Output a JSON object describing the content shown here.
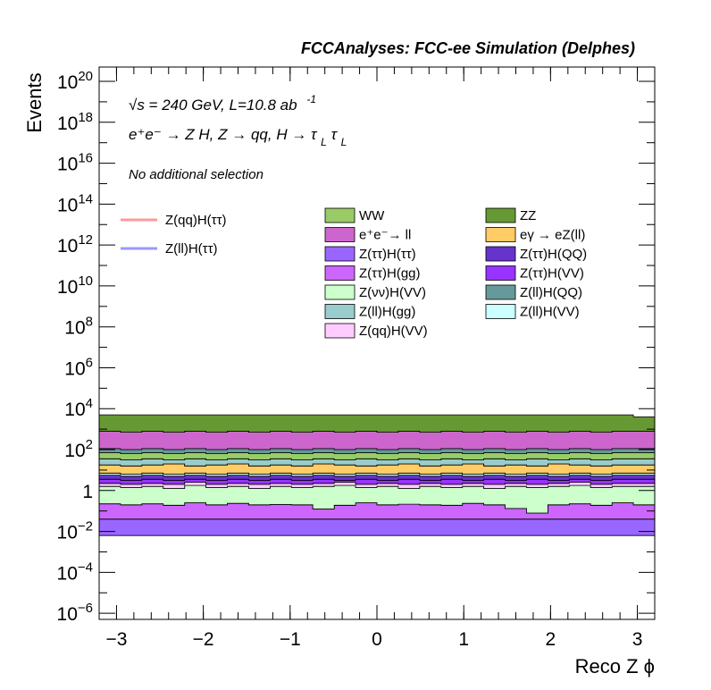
{
  "chart_data": {
    "type": "area",
    "title": "FCCAnalyses: FCC-ee Simulation (Delphes)",
    "xlabel": "Reco Z ϕ",
    "ylabel": "Events",
    "xlim": [
      -3.2,
      3.2
    ],
    "ylim_log10": [
      -6.3,
      20.7
    ],
    "log_y": true,
    "x_ticks": [
      {
        "value": -3,
        "label": "−3"
      },
      {
        "value": -2,
        "label": "−2"
      },
      {
        "value": -1,
        "label": "−1"
      },
      {
        "value": 0,
        "label": "0"
      },
      {
        "value": 1,
        "label": "1"
      },
      {
        "value": 2,
        "label": "2"
      },
      {
        "value": 3,
        "label": "3"
      }
    ],
    "y_ticks": [
      {
        "exp": 20,
        "base": "10",
        "sup": "20"
      },
      {
        "exp": 18,
        "base": "10",
        "sup": "18"
      },
      {
        "exp": 16,
        "base": "10",
        "sup": "16"
      },
      {
        "exp": 14,
        "base": "10",
        "sup": "14"
      },
      {
        "exp": 12,
        "base": "10",
        "sup": "12"
      },
      {
        "exp": 10,
        "base": "10",
        "sup": "10"
      },
      {
        "exp": 8,
        "base": "10",
        "sup": "8"
      },
      {
        "exp": 6,
        "base": "10",
        "sup": "6"
      },
      {
        "exp": 4,
        "base": "10",
        "sup": "4"
      },
      {
        "exp": 2,
        "base": "10",
        "sup": "2"
      },
      {
        "exp": 0,
        "base": "1",
        "sup": ""
      },
      {
        "exp": -2,
        "base": "10",
        "sup": "−2"
      },
      {
        "exp": -4,
        "base": "10",
        "sup": "−4"
      },
      {
        "exp": -6,
        "base": "10",
        "sup": "−6"
      }
    ],
    "annotations": {
      "energy": "√s = 240 GeV, L=10.8 ab",
      "energy_sup": "-1",
      "process": "e⁺e⁻ → Z H, Z → qq, H → τ",
      "process_sub": "L",
      "process_tail": "τ",
      "selection": "No additional selection"
    },
    "bins": 26,
    "stacked_series": [
      {
        "name": "Z(ττ)H(ττ)",
        "color": "#9966ff",
        "base_log10": -2.2,
        "cumulative_log10": [
          -1.4,
          -1.4,
          -1.4,
          -1.4,
          -1.4,
          -1.4,
          -1.4,
          -1.4,
          -1.4,
          -1.4,
          -1.4,
          -1.4,
          -1.4,
          -1.4,
          -1.4,
          -1.4,
          -1.4,
          -1.4,
          -1.4,
          -1.4,
          -1.4,
          -1.4,
          -1.4,
          -1.4,
          -1.4,
          -1.4
        ]
      },
      {
        "name": "Z(ττ)H(gg)",
        "color": "#cc66ff",
        "cumulative_log10": [
          -0.65,
          -0.7,
          -0.65,
          -0.72,
          -0.6,
          -0.7,
          -0.63,
          -0.7,
          -0.68,
          -0.7,
          -0.9,
          -0.72,
          -0.6,
          -0.7,
          -0.67,
          -0.7,
          -0.72,
          -0.63,
          -0.7,
          -0.88,
          -1.1,
          -0.7,
          -0.65,
          -0.72,
          -0.6,
          -0.7
        ]
      },
      {
        "name": "Z(νν)H(VV)",
        "color": "#ccffcc",
        "cumulative_log10": [
          0.2,
          0.15,
          0.2,
          0.1,
          0.25,
          0.15,
          0.2,
          0.1,
          0.2,
          0.15,
          0.2,
          0.25,
          0.15,
          0.2,
          0.1,
          0.2,
          0.15,
          0.2,
          0.1,
          0.2,
          0.15,
          0.2,
          0.25,
          0.15,
          0.2,
          0.2
        ]
      },
      {
        "name": "Z(qq)H(VV)",
        "color": "#ffccff",
        "cumulative_log10": [
          0.35,
          0.3,
          0.35,
          0.3,
          0.4,
          0.3,
          0.35,
          0.3,
          0.35,
          0.3,
          0.35,
          0.4,
          0.3,
          0.35,
          0.3,
          0.35,
          0.3,
          0.35,
          0.3,
          0.35,
          0.3,
          0.35,
          0.4,
          0.3,
          0.35,
          0.35
        ]
      },
      {
        "name": "Z(ττ)H(VV)",
        "color": "#9933ff",
        "cumulative_log10": [
          0.55,
          0.5,
          0.55,
          0.5,
          0.55,
          0.5,
          0.55,
          0.5,
          0.55,
          0.5,
          0.55,
          0.5,
          0.55,
          0.5,
          0.55,
          0.5,
          0.55,
          0.5,
          0.55,
          0.5,
          0.55,
          0.5,
          0.55,
          0.5,
          0.55,
          0.55
        ]
      },
      {
        "name": "Z(ττ)H(QQ)",
        "color": "#6633cc",
        "cumulative_log10": [
          0.75,
          0.7,
          0.75,
          0.7,
          0.75,
          0.7,
          0.75,
          0.7,
          0.75,
          0.7,
          0.75,
          0.7,
          0.75,
          0.7,
          0.75,
          0.7,
          0.75,
          0.7,
          0.75,
          0.7,
          0.75,
          0.7,
          0.75,
          0.7,
          0.75,
          0.75
        ]
      },
      {
        "name": "Z(ll)H(VV)",
        "color": "#ccffff",
        "cumulative_log10": [
          0.85,
          0.8,
          0.85,
          0.8,
          0.85,
          0.8,
          0.85,
          0.8,
          0.85,
          0.8,
          0.85,
          0.8,
          0.85,
          0.8,
          0.85,
          0.8,
          0.85,
          0.8,
          0.85,
          0.8,
          0.85,
          0.8,
          0.85,
          0.8,
          0.85,
          0.85
        ]
      },
      {
        "name": "eγ → eZ(ll)",
        "color": "#ffcc66",
        "cumulative_log10": [
          1.25,
          1.2,
          1.25,
          1.3,
          1.2,
          1.25,
          1.3,
          1.2,
          1.25,
          1.2,
          1.3,
          1.25,
          1.2,
          1.25,
          1.3,
          1.2,
          1.25,
          1.3,
          1.2,
          1.25,
          1.2,
          1.3,
          1.25,
          1.2,
          1.25,
          1.25
        ]
      },
      {
        "name": "Z(ll)H(gg)",
        "color": "#99cccc",
        "cumulative_log10": [
          1.55,
          1.5,
          1.55,
          1.5,
          1.55,
          1.5,
          1.55,
          1.5,
          1.55,
          1.5,
          1.55,
          1.5,
          1.55,
          1.5,
          1.55,
          1.5,
          1.55,
          1.5,
          1.55,
          1.5,
          1.55,
          1.5,
          1.55,
          1.5,
          1.55,
          1.55
        ]
      },
      {
        "name": "WW",
        "color": "#99cc66",
        "cumulative_log10": [
          1.85,
          1.8,
          1.85,
          1.8,
          1.85,
          1.8,
          1.85,
          1.8,
          1.85,
          1.8,
          1.85,
          1.8,
          1.85,
          1.8,
          1.85,
          1.8,
          1.85,
          1.8,
          1.85,
          1.8,
          1.85,
          1.8,
          1.85,
          1.8,
          1.85,
          1.85
        ]
      },
      {
        "name": "Z(ll)H(QQ)",
        "color": "#669999",
        "cumulative_log10": [
          2.05,
          2.0,
          2.05,
          2.0,
          2.05,
          2.0,
          2.05,
          2.0,
          2.05,
          2.0,
          2.05,
          2.0,
          2.05,
          2.0,
          2.05,
          2.0,
          2.05,
          2.0,
          2.05,
          2.0,
          2.05,
          2.0,
          2.05,
          2.0,
          2.05,
          2.05
        ]
      },
      {
        "name": "e⁺e⁻→ ll",
        "color": "#cc66cc",
        "cumulative_log10": [
          2.9,
          2.85,
          2.9,
          2.85,
          2.9,
          2.85,
          2.9,
          2.85,
          2.9,
          2.85,
          2.9,
          2.85,
          2.9,
          2.85,
          2.9,
          2.85,
          2.9,
          2.85,
          2.9,
          2.85,
          2.9,
          2.85,
          2.9,
          2.85,
          2.9,
          2.9
        ]
      },
      {
        "name": "ZZ",
        "color": "#669933",
        "cumulative_log10": [
          3.7,
          3.7,
          3.7,
          3.7,
          3.7,
          3.7,
          3.7,
          3.7,
          3.7,
          3.7,
          3.7,
          3.7,
          3.7,
          3.7,
          3.7,
          3.7,
          3.7,
          3.7,
          3.7,
          3.7,
          3.7,
          3.7,
          3.7,
          3.7,
          3.7,
          3.6
        ]
      }
    ],
    "lines": [
      {
        "name": "Z(qq)H(ττ)",
        "color": "#ff9999"
      },
      {
        "name": "Z(ll)H(ττ)",
        "color": "#9999ff"
      }
    ],
    "legend_fills": [
      {
        "name": "WW",
        "color": "#99cc66"
      },
      {
        "name": "ZZ",
        "color": "#669933"
      },
      {
        "name": "e⁺e⁻→ ll",
        "color": "#cc66cc"
      },
      {
        "name": "eγ → eZ(ll)",
        "color": "#ffcc66"
      },
      {
        "name": "Z(ττ)H(ττ)",
        "color": "#9966ff"
      },
      {
        "name": "Z(ττ)H(QQ)",
        "color": "#6633cc"
      },
      {
        "name": "Z(ττ)H(gg)",
        "color": "#cc66ff"
      },
      {
        "name": "Z(ττ)H(VV)",
        "color": "#9933ff"
      },
      {
        "name": "Z(νν)H(VV)",
        "color": "#ccffcc"
      },
      {
        "name": "Z(ll)H(QQ)",
        "color": "#669999"
      },
      {
        "name": "Z(ll)H(gg)",
        "color": "#99cccc"
      },
      {
        "name": "Z(ll)H(VV)",
        "color": "#ccffff"
      },
      {
        "name": "Z(qq)H(VV)",
        "color": "#ffccff"
      }
    ],
    "grid": false,
    "legend_placement": "top-center"
  }
}
